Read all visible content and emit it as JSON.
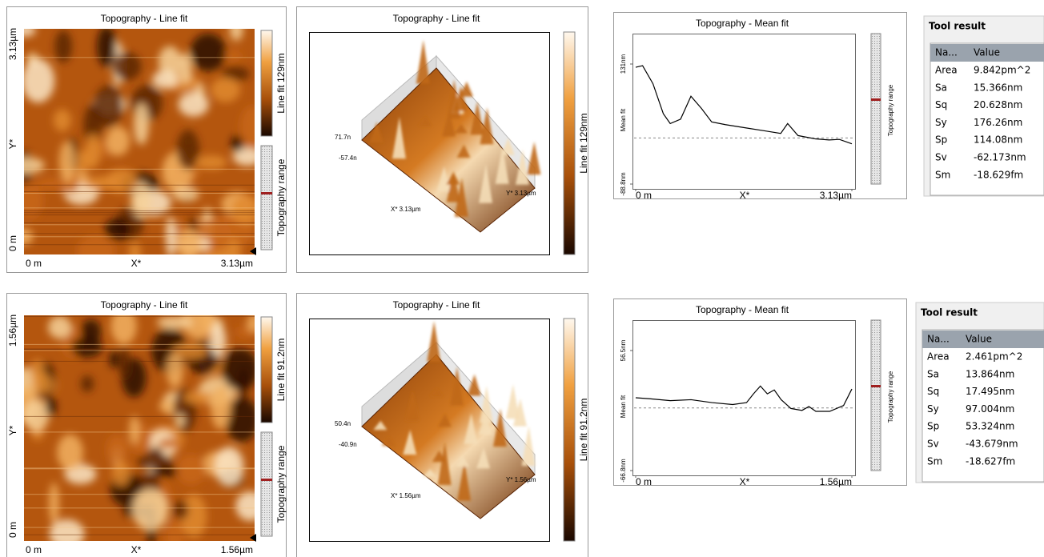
{
  "panels": [
    {
      "image": {
        "title": "Topography - Line fit",
        "colorbar_label": "Line fit 129nm",
        "range_label": "Topography range",
        "y_axis": {
          "top": "3.13µm",
          "label": "Y*",
          "bottom": "0 m"
        },
        "x_axis": {
          "left": "0 m",
          "label": "X*",
          "right": "3.13µm"
        }
      },
      "view3d": {
        "title": "Topography - Line fit",
        "colorbar_label": "Line fit 129nm",
        "z_top": "71.7n",
        "z_bottom": "-57.4n",
        "x_label": "X* 3.13µm",
        "y_label": "Y* 3.13µm"
      },
      "profile": {
        "title": "Topography - Mean fit",
        "y_label": "Mean fit",
        "x_label": "X*",
        "range_label": "Topography range",
        "yticks": [
          {
            "value": 131,
            "label": "131nm"
          },
          {
            "value": -88.8,
            "label": "-88.8nm"
          }
        ],
        "xticks": [
          {
            "value": 0,
            "label": "0 m"
          },
          {
            "value": 3.13,
            "label": "3.13µm"
          }
        ],
        "x": [
          0,
          0.1,
          0.25,
          0.4,
          0.5,
          0.65,
          0.8,
          0.95,
          1.1,
          1.3,
          1.6,
          1.9,
          2.1,
          2.2,
          2.35,
          2.6,
          2.8,
          2.95,
          3.13
        ],
        "values": [
          125,
          128,
          95,
          40,
          22,
          30,
          72,
          50,
          25,
          20,
          14,
          8,
          4,
          22,
          0,
          -6,
          -8,
          -7,
          -15
        ]
      },
      "tool": {
        "title": "Tool result",
        "columns": [
          "Na...",
          "Value"
        ],
        "rows": [
          [
            "Area",
            "9.842pm^2"
          ],
          [
            "Sa",
            "15.366nm"
          ],
          [
            "Sq",
            "20.628nm"
          ],
          [
            "Sy",
            "176.26nm"
          ],
          [
            "Sp",
            "114.08nm"
          ],
          [
            "Sv",
            "-62.173nm"
          ],
          [
            "Sm",
            "-18.629fm"
          ]
        ]
      }
    },
    {
      "image": {
        "title": "Topography - Line fit",
        "colorbar_label": "Line fit 91.2nm",
        "range_label": "Topography range",
        "y_axis": {
          "top": "1.56µm",
          "label": "Y*",
          "bottom": "0 m"
        },
        "x_axis": {
          "left": "0 m",
          "label": "X*",
          "right": "1.56µm"
        }
      },
      "view3d": {
        "title": "Topography - Line fit",
        "colorbar_label": "Line fit 91.2nm",
        "z_top": "50.4n",
        "z_bottom": "-40.9n",
        "x_label": "X* 1.56µm",
        "y_label": "Y* 1.56µm"
      },
      "profile": {
        "title": "Topography - Mean fit",
        "y_label": "Mean fit",
        "x_label": "X*",
        "range_label": "Topography range",
        "yticks": [
          {
            "value": 56.5,
            "label": "56.5nm"
          },
          {
            "value": -66.8,
            "label": "-66.8nm"
          }
        ],
        "xticks": [
          {
            "value": 0,
            "label": "0 m"
          },
          {
            "value": 1.56,
            "label": "1.56µm"
          }
        ],
        "x": [
          0,
          0.1,
          0.25,
          0.4,
          0.55,
          0.7,
          0.8,
          0.85,
          0.9,
          0.95,
          1.0,
          1.05,
          1.12,
          1.2,
          1.25,
          1.3,
          1.4,
          1.5,
          1.56
        ],
        "values": [
          8,
          7,
          5,
          6,
          3,
          1,
          3,
          12,
          20,
          12,
          16,
          6,
          -3,
          -5,
          -1,
          -6,
          -6,
          0,
          17
        ]
      },
      "tool": {
        "title": "Tool result",
        "columns": [
          "Na...",
          "Value"
        ],
        "rows": [
          [
            "Area",
            "2.461pm^2"
          ],
          [
            "Sa",
            "13.864nm"
          ],
          [
            "Sq",
            "17.495nm"
          ],
          [
            "Sy",
            "97.004nm"
          ],
          [
            "Sp",
            "53.324nm"
          ],
          [
            "Sv",
            "-43.679nm"
          ],
          [
            "Sm",
            "-18.627fm"
          ]
        ]
      }
    }
  ]
}
